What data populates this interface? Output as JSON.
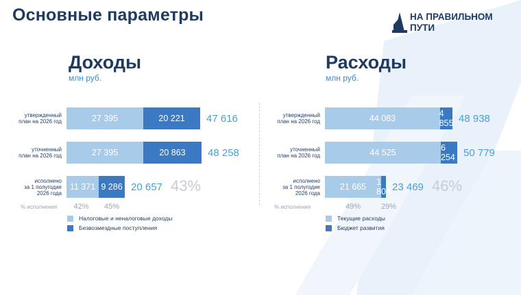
{
  "header": {
    "title": "Основные параметры",
    "logo_line1": "НА ПРАВИЛЬНОМ",
    "logo_line2": "ПУТИ"
  },
  "chart_data": [
    {
      "type": "bar",
      "orientation": "horizontal",
      "stacked": true,
      "title": "Доходы",
      "subtitle": "млн руб.",
      "categories": [
        "утвержденный план на 2026 год",
        "уточненный план на 2026 год",
        "исполнено за 1 полугодие 2026 года"
      ],
      "series": [
        {
          "name": "Налоговые и неналоговые доходы",
          "values": [
            27395,
            27395,
            11371
          ],
          "color": "#a8cbea"
        },
        {
          "name": "Безвозмездные поступления",
          "values": [
            20221,
            20863,
            9286
          ],
          "color": "#3b79c3"
        }
      ],
      "labels": {
        "rows": [
          {
            "label": "утвержденный\nплан на 2026 год",
            "values": [
              "27 395",
              "20 221"
            ],
            "total": "47 616"
          },
          {
            "label": "уточненный\nплан на 2026 год",
            "values": [
              "27 395",
              "20 863"
            ],
            "total": "48 258"
          },
          {
            "label": "исполнено\nза 1 полугодие\n2026 года",
            "values": [
              "11 371",
              "9 286"
            ],
            "total": "20 657",
            "total_pct": "43%"
          }
        ],
        "pct_label": "% исполнения",
        "series_pct": [
          "42%",
          "45%"
        ]
      },
      "legend_position": "bottom-left"
    },
    {
      "type": "bar",
      "orientation": "horizontal",
      "stacked": true,
      "title": "Расходы",
      "subtitle": "млн руб.",
      "categories": [
        "утвержденный план на 2026 год",
        "уточненный план на 2026 год",
        "исполнено за 1 полугодие 2026 года"
      ],
      "series": [
        {
          "name": "Текущие расходы",
          "values": [
            44083,
            44525,
            21665
          ],
          "color": "#a8cbea"
        },
        {
          "name": "Бюджет развития",
          "values": [
            4855,
            6254,
            1804
          ],
          "color": "#3b79c3"
        }
      ],
      "labels": {
        "rows": [
          {
            "label": "утвержденный\nплан на 2026 год",
            "values": [
              "44 083",
              "4 855"
            ],
            "total": "48 938"
          },
          {
            "label": "уточненный\nплан на 2026 год",
            "values": [
              "44 525",
              "6 254"
            ],
            "total": "50 779"
          },
          {
            "label": "исполнено\nза 1 полугодие\n2026 года",
            "values": [
              "21 665",
              "1 804"
            ],
            "total": "23 469",
            "total_pct": "46%"
          }
        ],
        "pct_label": "% исполнения",
        "series_pct": [
          "49%",
          "29%"
        ]
      },
      "legend_position": "bottom-left"
    }
  ]
}
